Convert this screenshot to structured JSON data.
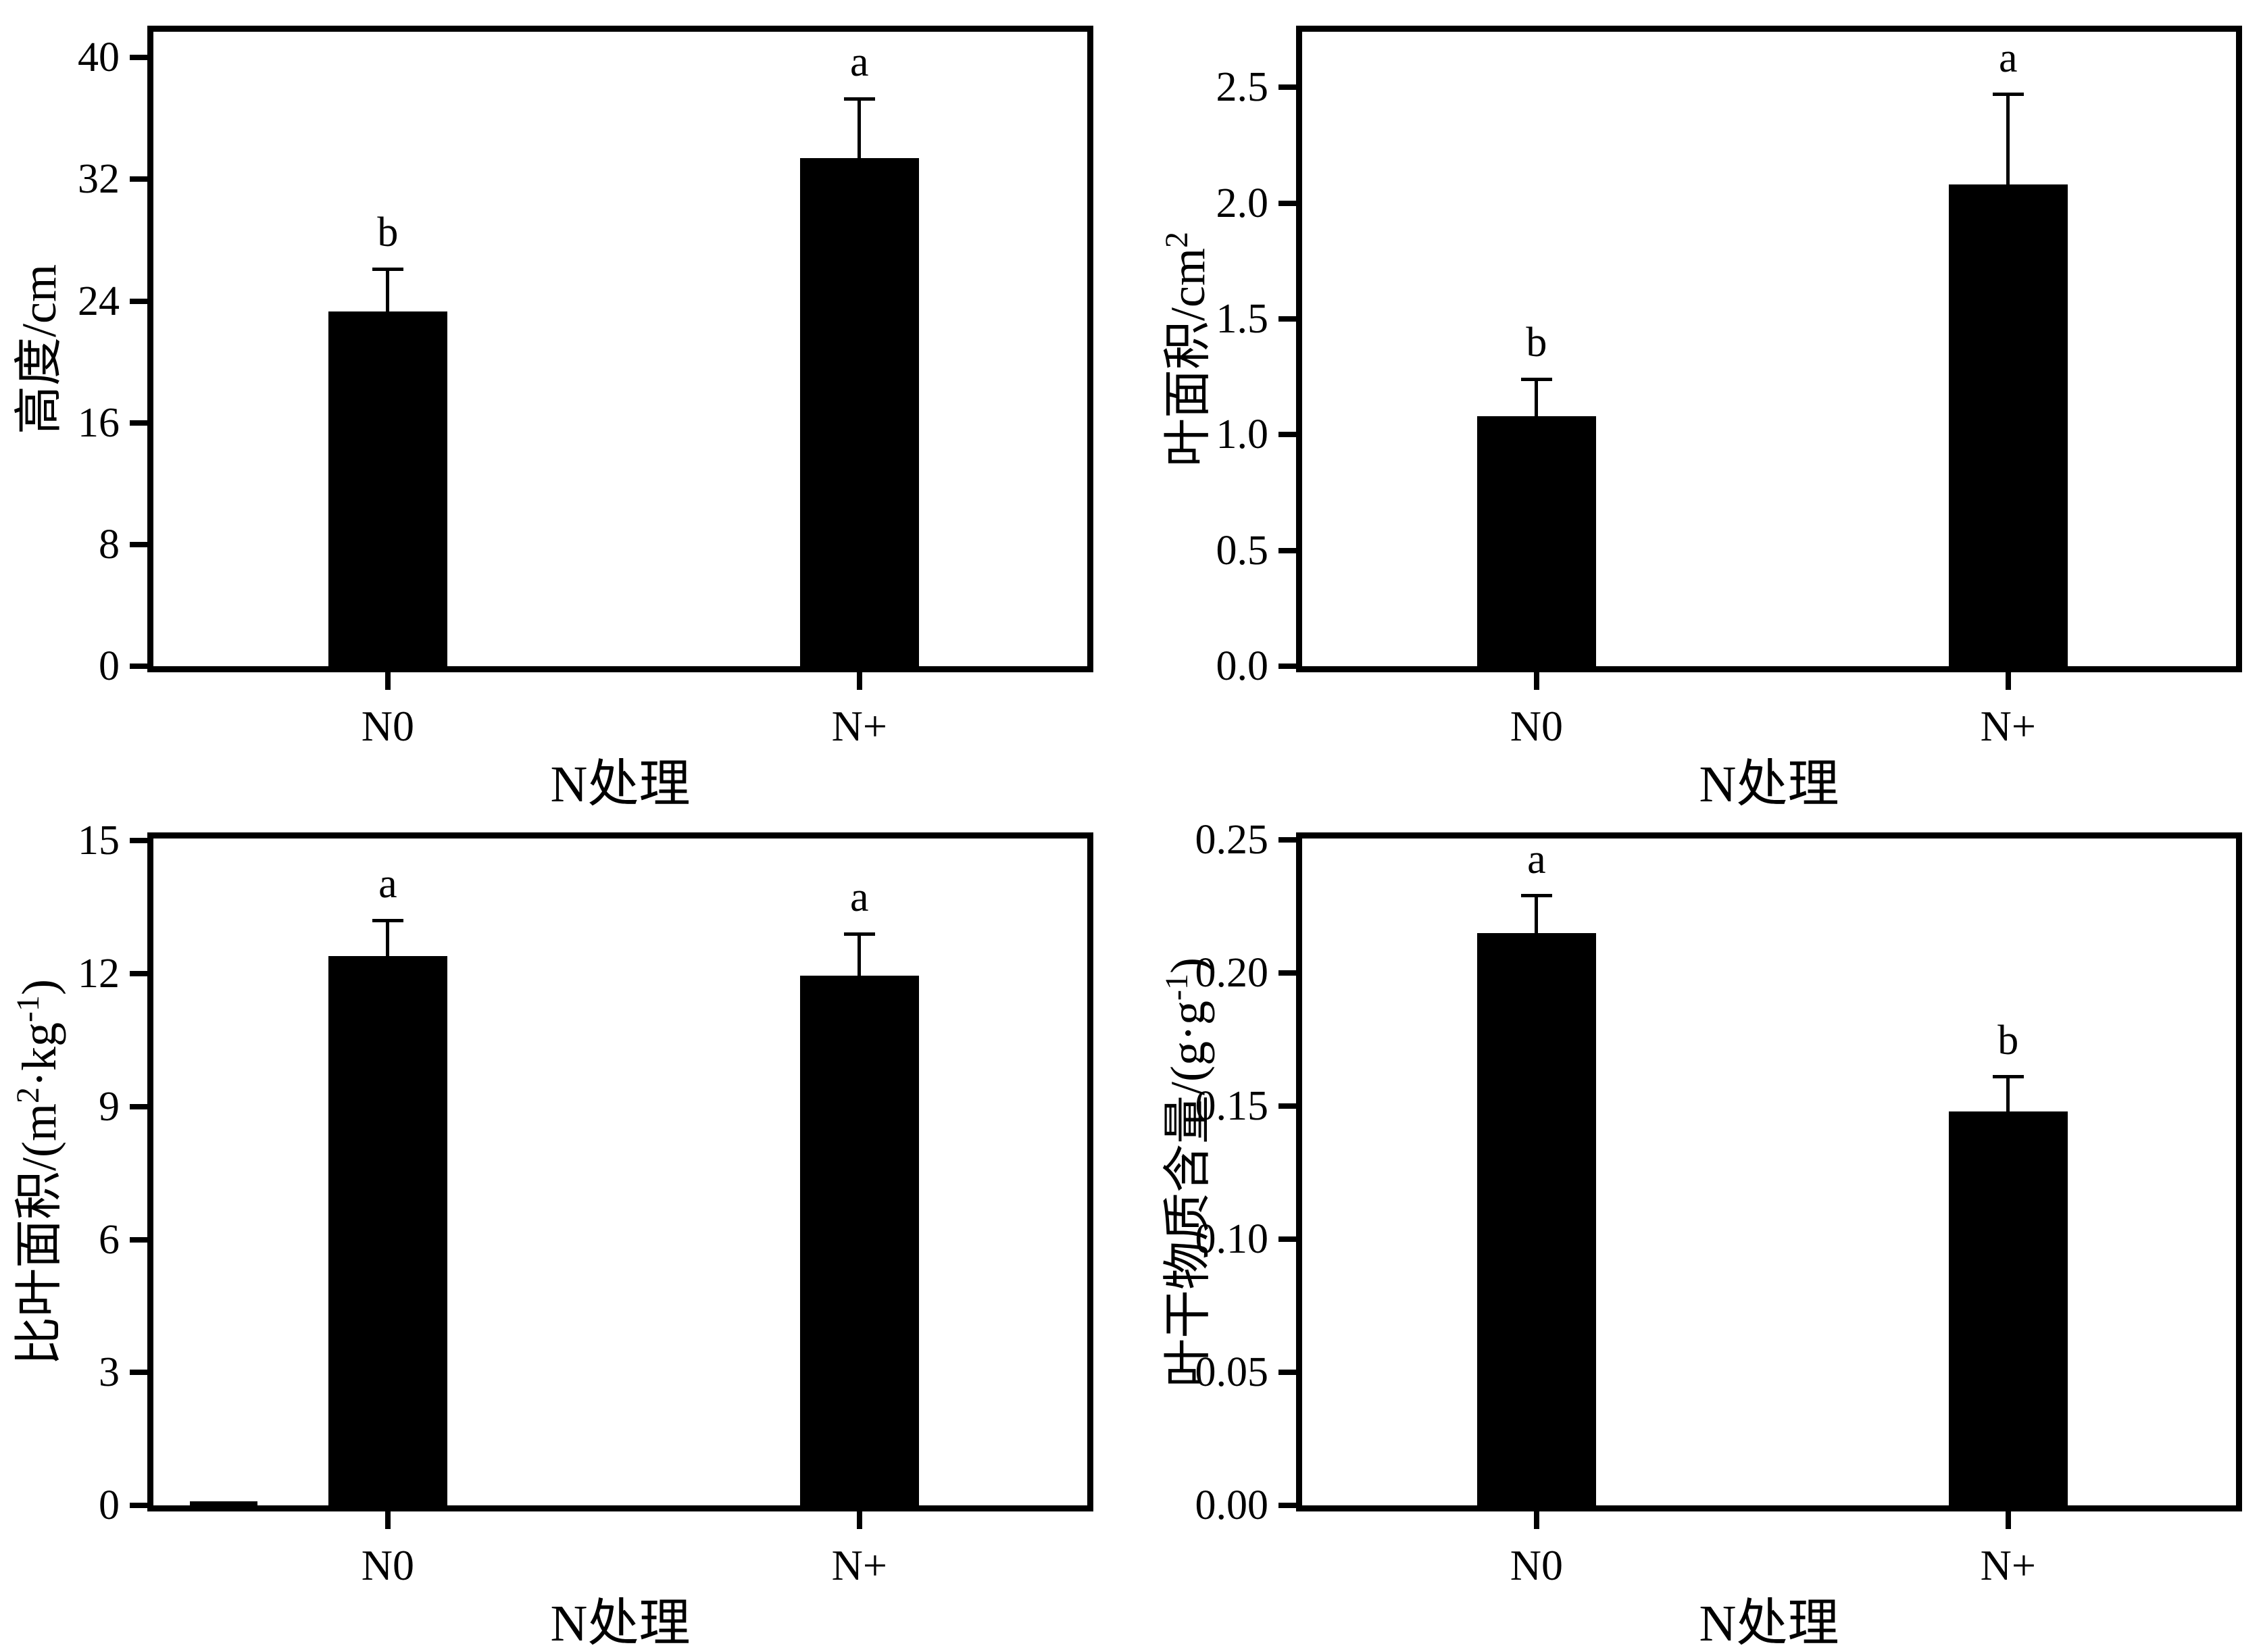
{
  "figure": {
    "background": "#ffffff",
    "plot_background": "#ffffff",
    "axis_color": "#000000",
    "bar_color": "#000000",
    "text_color": "#000000",
    "layout": "2x2-grid"
  },
  "chart_data": [
    {
      "type": "bar",
      "position": "top-left",
      "xlabel": "N处理",
      "ylabel": "高度/cm",
      "ylabel_parts": [
        [
          "t",
          "高度/cm"
        ]
      ],
      "categories": [
        "N0",
        "N+"
      ],
      "values": [
        23.3,
        33.4
      ],
      "errors_plus": [
        2.8,
        3.9
      ],
      "sig_letters": [
        "b",
        "a"
      ],
      "yticks": [
        {
          "value": 0,
          "label": "0"
        },
        {
          "value": 8,
          "label": "8"
        },
        {
          "value": 16,
          "label": "16"
        },
        {
          "value": 24,
          "label": "24"
        },
        {
          "value": 32,
          "label": "32"
        },
        {
          "value": 40,
          "label": "40"
        }
      ],
      "ylim": [
        0,
        41.7
      ],
      "grid": false,
      "legend": null
    },
    {
      "type": "bar",
      "position": "top-right",
      "xlabel": "N处理",
      "ylabel": "叶面积/cm²",
      "ylabel_parts": [
        [
          "t",
          "叶面积/cm"
        ],
        [
          "s",
          "2"
        ]
      ],
      "categories": [
        "N0",
        "N+"
      ],
      "values": [
        1.08,
        2.08
      ],
      "errors_plus": [
        0.16,
        0.39
      ],
      "sig_letters": [
        "b",
        "a"
      ],
      "yticks": [
        {
          "value": 0,
          "label": "0.0"
        },
        {
          "value": 0.5,
          "label": "0.5"
        },
        {
          "value": 1.0,
          "label": "1.0"
        },
        {
          "value": 1.5,
          "label": "1.5"
        },
        {
          "value": 2.0,
          "label": "2.0"
        },
        {
          "value": 2.5,
          "label": "2.5"
        }
      ],
      "ylim": [
        0,
        2.74
      ],
      "grid": false,
      "legend": null
    },
    {
      "type": "bar",
      "position": "bottom-left",
      "xlabel": "N处理",
      "ylabel": "比叶面积/(m²·kg⁻¹)",
      "ylabel_parts": [
        [
          "t",
          "比叶面积/(m"
        ],
        [
          "s",
          "2"
        ],
        [
          "t",
          "·kg"
        ],
        [
          "s",
          "-1"
        ],
        [
          "t",
          ")"
        ]
      ],
      "categories": [
        "N0",
        "N+"
      ],
      "values": [
        12.4,
        11.95
      ],
      "errors_plus": [
        0.8,
        0.95
      ],
      "sig_letters": [
        "a",
        "a"
      ],
      "stray_bar_value": 0.09,
      "yticks": [
        {
          "value": 0,
          "label": "0"
        },
        {
          "value": 3,
          "label": "3"
        },
        {
          "value": 6,
          "label": "6"
        },
        {
          "value": 9,
          "label": "9"
        },
        {
          "value": 12,
          "label": "12"
        },
        {
          "value": 15,
          "label": "15"
        }
      ],
      "ylim": [
        0,
        15.05
      ],
      "grid": false,
      "legend": null
    },
    {
      "type": "bar",
      "position": "bottom-right",
      "xlabel": "N处理",
      "ylabel": "叶干物质含量/(g·g⁻¹)",
      "ylabel_parts": [
        [
          "t",
          "叶干物质含量/(g·g"
        ],
        [
          "s",
          "-1"
        ],
        [
          "t",
          ")"
        ]
      ],
      "categories": [
        "N0",
        "N+"
      ],
      "values": [
        0.215,
        0.148
      ],
      "errors_plus": [
        0.014,
        0.013
      ],
      "sig_letters": [
        "a",
        "b"
      ],
      "yticks": [
        {
          "value": 0,
          "label": "0.00"
        },
        {
          "value": 0.05,
          "label": "0.05"
        },
        {
          "value": 0.1,
          "label": "0.10"
        },
        {
          "value": 0.15,
          "label": "0.15"
        },
        {
          "value": 0.2,
          "label": "0.20"
        },
        {
          "value": 0.25,
          "label": "0.25"
        }
      ],
      "ylim": [
        0,
        0.2505
      ],
      "grid": false,
      "legend": null
    }
  ]
}
